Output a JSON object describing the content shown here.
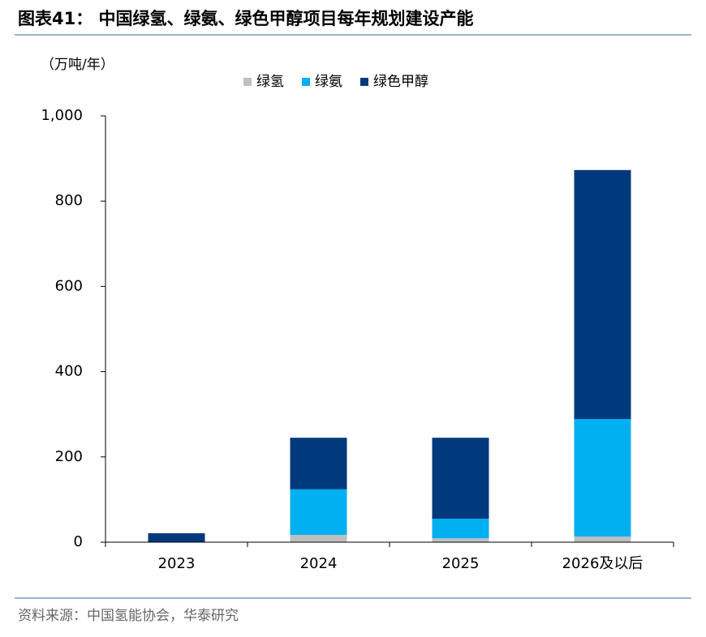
{
  "header": {
    "title": "图表41：  中国绿氢、绿氨、绿色甲醇项目每年规划建设产能"
  },
  "chart_data": {
    "type": "stacked-bar",
    "y_label": "（万吨/年）",
    "categories": [
      "2023",
      "2024",
      "2025",
      "2026及以后"
    ],
    "series": [
      {
        "name": "绿氢",
        "color": "#bfbfbf",
        "values": [
          0,
          17,
          9,
          13
        ]
      },
      {
        "name": "绿氨",
        "color": "#00b0f0",
        "values": [
          0,
          107,
          46,
          276
        ]
      },
      {
        "name": "绿色甲醇",
        "color": "#003a7d",
        "values": [
          21,
          121,
          190,
          584
        ]
      }
    ],
    "ylim": [
      0,
      1000
    ],
    "yticks": [
      0,
      200,
      400,
      600,
      800,
      {
        "value": 1000,
        "label": "1,000"
      }
    ],
    "legend": "top"
  },
  "footer": {
    "source": "资料来源：中国氢能协会，华泰研究"
  }
}
